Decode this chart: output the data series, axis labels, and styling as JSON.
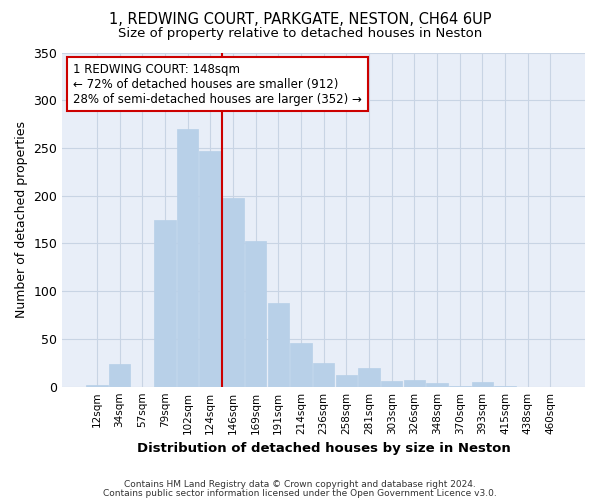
{
  "title1": "1, REDWING COURT, PARKGATE, NESTON, CH64 6UP",
  "title2": "Size of property relative to detached houses in Neston",
  "xlabel": "Distribution of detached houses by size in Neston",
  "ylabel": "Number of detached properties",
  "categories": [
    "12sqm",
    "34sqm",
    "57sqm",
    "79sqm",
    "102sqm",
    "124sqm",
    "146sqm",
    "169sqm",
    "191sqm",
    "214sqm",
    "236sqm",
    "258sqm",
    "281sqm",
    "303sqm",
    "326sqm",
    "348sqm",
    "370sqm",
    "393sqm",
    "415sqm",
    "438sqm",
    "460sqm"
  ],
  "values": [
    2,
    24,
    0,
    175,
    270,
    247,
    198,
    153,
    88,
    46,
    25,
    12,
    20,
    6,
    7,
    4,
    1,
    5,
    1,
    0,
    0
  ],
  "bar_color": "#b8d0e8",
  "bar_edge_color": "#b8d0e8",
  "annotation_text": "1 REDWING COURT: 148sqm\n← 72% of detached houses are smaller (912)\n28% of semi-detached houses are larger (352) →",
  "annotation_box_color": "#ffffff",
  "annotation_box_edge": "#cc0000",
  "redline_color": "#cc0000",
  "grid_color": "#c8d4e4",
  "background_color": "#e8eef8",
  "ylim": [
    0,
    350
  ],
  "yticks": [
    0,
    50,
    100,
    150,
    200,
    250,
    300,
    350
  ],
  "footer1": "Contains HM Land Registry data © Crown copyright and database right 2024.",
  "footer2": "Contains public sector information licensed under the Open Government Licence v3.0."
}
